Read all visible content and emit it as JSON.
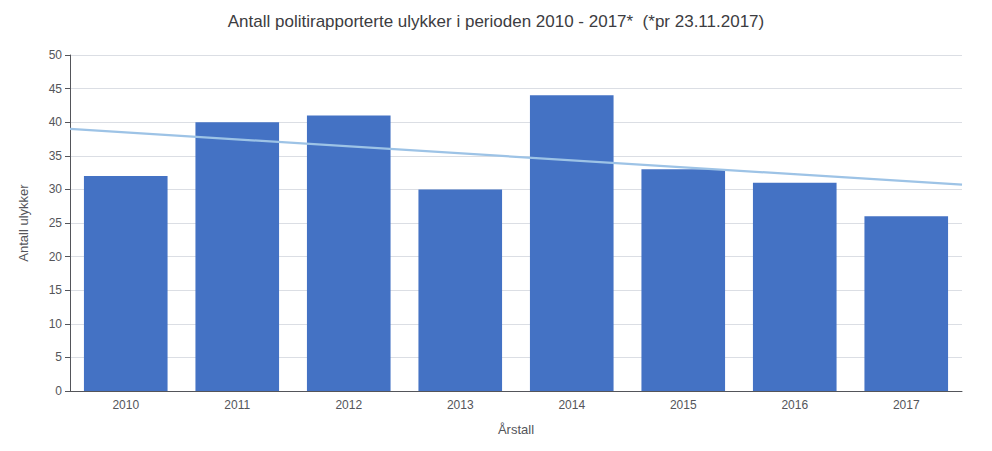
{
  "chart_data": {
    "type": "bar",
    "title": "Antall politirapporterte ulykker i perioden 2010 - 2017*  (*pr 23.11.2017)",
    "xlabel": "Årstall",
    "ylabel": "Antall ulykker",
    "categories": [
      "2010",
      "2011",
      "2012",
      "2013",
      "2014",
      "2015",
      "2016",
      "2017"
    ],
    "values": [
      32,
      40,
      41,
      30,
      44,
      33,
      31,
      26
    ],
    "color": "#4472C4",
    "trend": {
      "values": [
        39.0,
        30.7
      ],
      "color": "#9DC3E6"
    },
    "ylim": [
      0,
      50
    ],
    "yticks": [
      0,
      5,
      10,
      15,
      20,
      25,
      30,
      35,
      40,
      45,
      50
    ],
    "grid": true
  }
}
